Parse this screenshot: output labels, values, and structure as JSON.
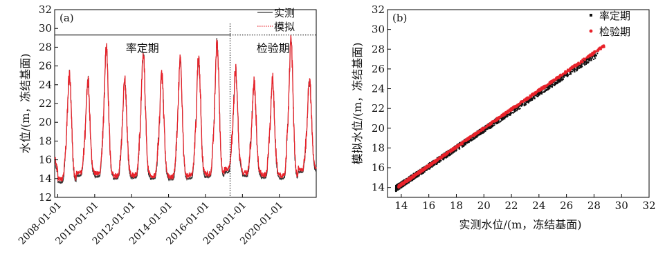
{
  "chart_data": [
    {
      "type": "line",
      "panel_label": "(a)",
      "xlabel": "",
      "ylabel": "水位/(m，冻结基面)",
      "ylim": [
        12,
        32
      ],
      "yticks": [
        12,
        14,
        16,
        18,
        20,
        22,
        24,
        26,
        28,
        30,
        32
      ],
      "xlim": [
        "2007-11-01",
        "2021-12-31"
      ],
      "xticks": [
        "2008-01-01",
        "2010-01-01",
        "2012-01-01",
        "2014-01-01",
        "2016-01-01",
        "2018-01-01",
        "2020-01-01"
      ],
      "grid": false,
      "legend_position": "top-right",
      "period_line_y": 29.3,
      "split_date": "2017-05-01",
      "periods": [
        {
          "name": "率定期",
          "start": "2007-11-01",
          "end": "2017-05-01"
        },
        {
          "name": "检验期",
          "start": "2017-05-01",
          "end": "2021-12-31"
        }
      ],
      "series": [
        {
          "name": "实测",
          "color": "#333333",
          "style": "solid",
          "annual_peaks": [
            {
              "year": 2008,
              "peak": 25.0,
              "base": 13.6
            },
            {
              "year": 2009,
              "peak": 24.5,
              "base": 14.3
            },
            {
              "year": 2010,
              "peak": 28.0,
              "base": 14.2
            },
            {
              "year": 2011,
              "peak": 24.4,
              "base": 14.0
            },
            {
              "year": 2012,
              "peak": 27.3,
              "base": 14.1
            },
            {
              "year": 2013,
              "peak": 25.0,
              "base": 14.0
            },
            {
              "year": 2014,
              "peak": 26.5,
              "base": 13.9
            },
            {
              "year": 2015,
              "peak": 26.9,
              "base": 14.0
            },
            {
              "year": 2016,
              "peak": 28.3,
              "base": 14.2
            },
            {
              "year": 2017,
              "peak": 25.5,
              "base": 14.7
            },
            {
              "year": 2018,
              "peak": 24.3,
              "base": 14.3
            },
            {
              "year": 2019,
              "peak": 24.6,
              "base": 14.1
            },
            {
              "year": 2020,
              "peak": 28.7,
              "base": 14.0
            },
            {
              "year": 2021,
              "peak": 24.5,
              "base": 14.7
            }
          ]
        },
        {
          "name": "模拟",
          "color": "#e8222a",
          "style": "dotted",
          "bias_low": 0.3
        }
      ]
    },
    {
      "type": "scatter",
      "panel_label": "(b)",
      "xlabel": "实测水位/(m，冻结基面)",
      "ylabel": "模拟水位/(m，冻结基面)",
      "xlim": [
        13,
        32
      ],
      "ylim": [
        13,
        32
      ],
      "xticks": [
        14,
        16,
        18,
        20,
        22,
        24,
        26,
        28,
        30,
        32
      ],
      "yticks": [
        14,
        16,
        18,
        20,
        22,
        24,
        26,
        28,
        30,
        32
      ],
      "grid": false,
      "legend_position": "top-right",
      "series": [
        {
          "name": "率定期",
          "color": "#111111",
          "marker": "square",
          "x_range": [
            13.6,
            28.3
          ],
          "slope": 0.93,
          "intercept": 1.25,
          "scatter": 0.3
        },
        {
          "name": "检验期",
          "color": "#e8222a",
          "marker": "circle",
          "x_range": [
            13.8,
            28.8
          ],
          "slope": 0.953,
          "intercept": 0.95,
          "scatter": 0.12
        }
      ]
    }
  ]
}
